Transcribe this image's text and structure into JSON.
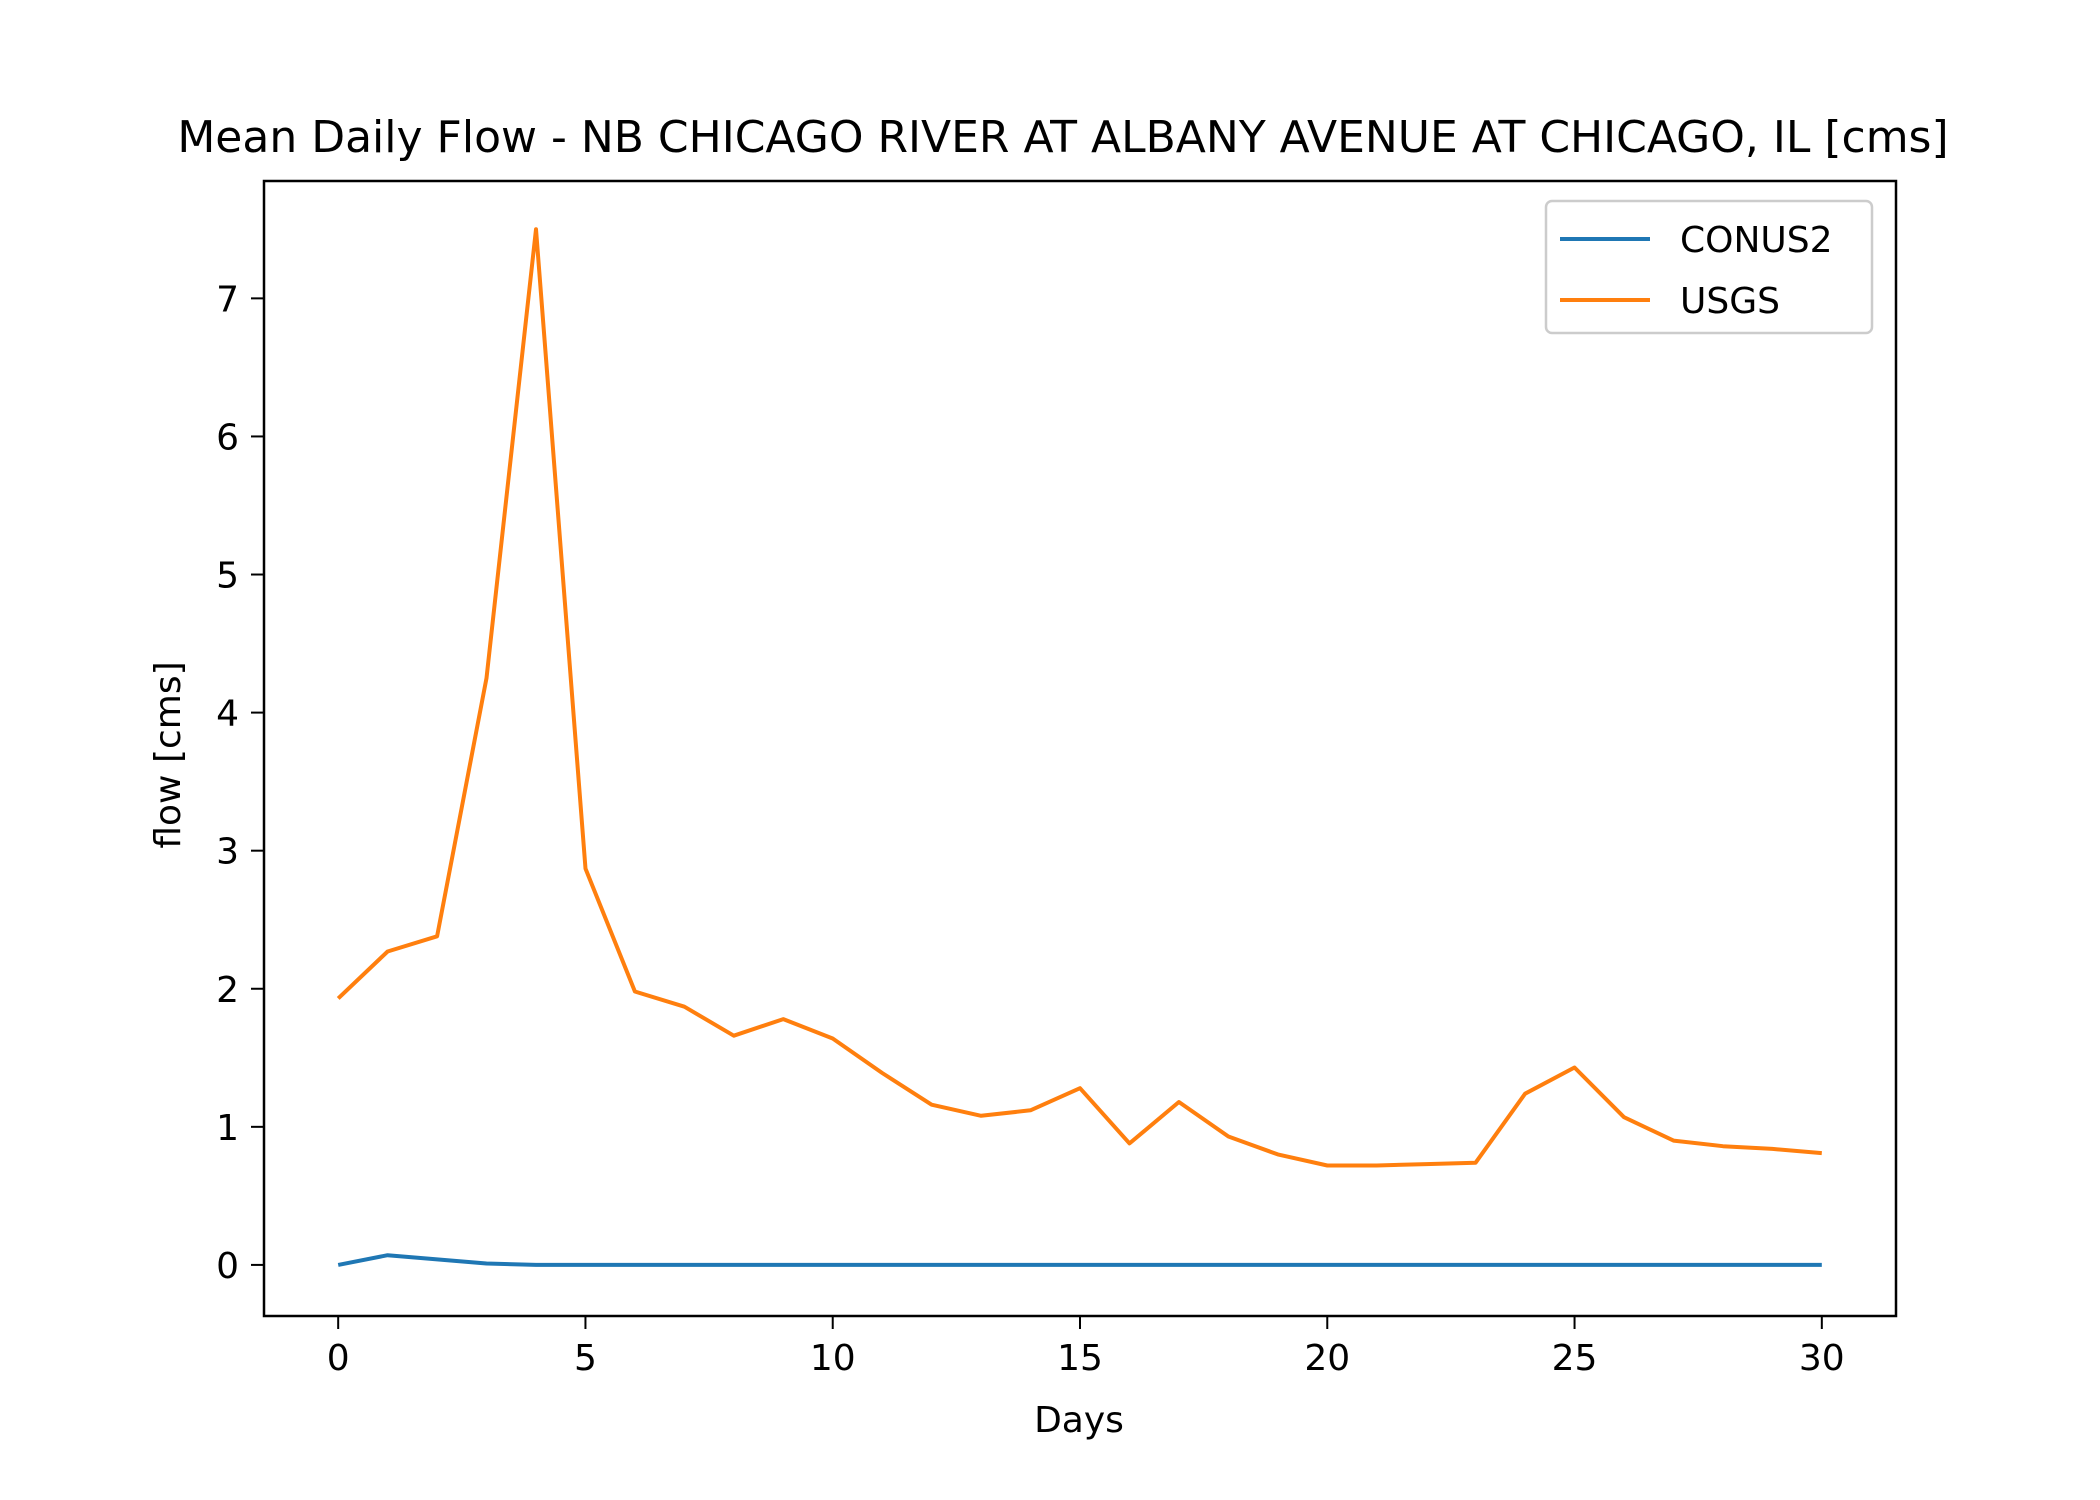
{
  "chart_data": {
    "type": "line",
    "title": "Mean Daily Flow - NB CHICAGO RIVER AT ALBANY AVENUE AT CHICAGO, IL [cms]",
    "xlabel": "Days",
    "ylabel": "flow [cms]",
    "xlim": [
      -1.5,
      31.5
    ],
    "ylim": [
      -0.37,
      7.85
    ],
    "xticks": [
      0,
      5,
      10,
      15,
      20,
      25,
      30
    ],
    "yticks": [
      0,
      1,
      2,
      3,
      4,
      5,
      6,
      7
    ],
    "grid": false,
    "legend": "top-right",
    "x": [
      0,
      1,
      2,
      3,
      4,
      5,
      6,
      7,
      8,
      9,
      10,
      11,
      12,
      13,
      14,
      15,
      16,
      17,
      18,
      19,
      20,
      21,
      22,
      23,
      24,
      25,
      26,
      27,
      28,
      29,
      30
    ],
    "series": [
      {
        "name": "CONUS2",
        "color": "#1f77b4",
        "values": [
          0.0,
          0.07,
          0.04,
          0.01,
          0.0,
          0.0,
          0.0,
          0.0,
          0.0,
          0.0,
          0.0,
          0.0,
          0.0,
          0.0,
          0.0,
          0.0,
          0.0,
          0.0,
          0.0,
          0.0,
          0.0,
          0.0,
          0.0,
          0.0,
          0.0,
          0.0,
          0.0,
          0.0,
          0.0,
          0.0,
          0.0
        ]
      },
      {
        "name": "USGS",
        "color": "#ff7f0e",
        "values": [
          1.93,
          2.27,
          2.38,
          4.25,
          7.5,
          2.87,
          1.98,
          1.87,
          1.66,
          1.78,
          1.64,
          1.39,
          1.16,
          1.08,
          1.12,
          1.28,
          0.88,
          1.18,
          0.93,
          0.8,
          0.72,
          0.72,
          0.73,
          0.74,
          1.24,
          1.43,
          1.07,
          0.9,
          0.86,
          0.84,
          0.81
        ]
      }
    ]
  }
}
